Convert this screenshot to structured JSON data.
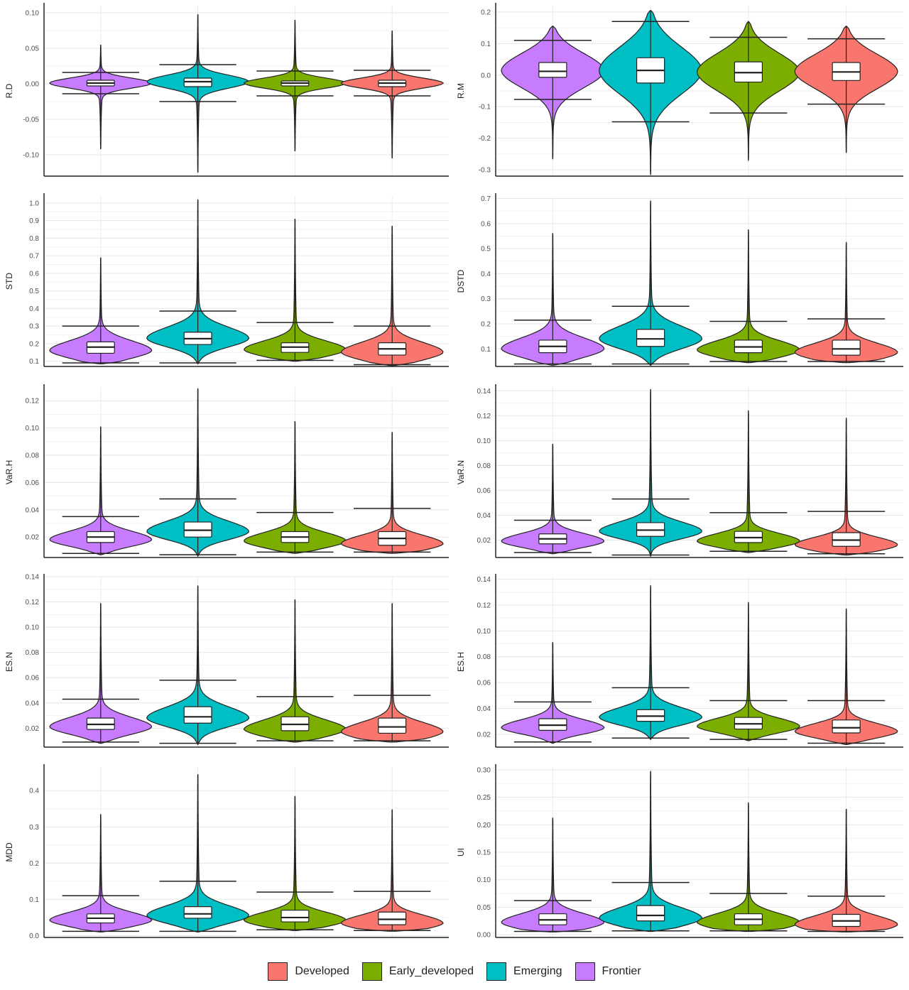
{
  "group_order": [
    "Frontier",
    "Emerging",
    "Early_developed",
    "Developed"
  ],
  "colors": {
    "Developed": "#F8766D",
    "Early_developed": "#7CAE00",
    "Emerging": "#00BFC4",
    "Frontier": "#C77CFF"
  },
  "legend": [
    {
      "label": "Developed",
      "color": "#F8766D"
    },
    {
      "label": "Early_developed",
      "color": "#7CAE00"
    },
    {
      "label": "Emerging",
      "color": "#00BFC4"
    },
    {
      "label": "Frontier",
      "color": "#C77CFF"
    }
  ],
  "chart_data": [
    {
      "type": "violin",
      "ylabel": "R.D",
      "ylim": [
        -0.13,
        0.11
      ],
      "ticks": [
        -0.1,
        -0.05,
        0.0,
        0.05,
        0.1
      ],
      "tick_labels": [
        "-0.10",
        "-0.05",
        "0.00",
        "0.05",
        "0.10"
      ],
      "series": [
        {
          "name": "Frontier",
          "q1": -0.003,
          "median": 0.001,
          "q3": 0.005,
          "whisker_low": -0.014,
          "whisker_high": 0.016,
          "min": -0.092,
          "max": 0.055,
          "mode": 0.001,
          "spread": 0.007,
          "skew": 0
        },
        {
          "name": "Emerging",
          "q1": -0.004,
          "median": 0.003,
          "q3": 0.008,
          "whisker_low": -0.025,
          "whisker_high": 0.027,
          "min": -0.125,
          "max": 0.098,
          "mode": 0.003,
          "spread": 0.009,
          "skew": 0
        },
        {
          "name": "Early_developed",
          "q1": -0.003,
          "median": 0.001,
          "q3": 0.004,
          "whisker_low": -0.017,
          "whisker_high": 0.018,
          "min": -0.095,
          "max": 0.09,
          "mode": 0.001,
          "spread": 0.007,
          "skew": 0
        },
        {
          "name": "Developed",
          "q1": -0.004,
          "median": 0.001,
          "q3": 0.005,
          "whisker_low": -0.017,
          "whisker_high": 0.019,
          "min": -0.105,
          "max": 0.075,
          "mode": 0.001,
          "spread": 0.007,
          "skew": 0
        }
      ]
    },
    {
      "type": "violin",
      "ylabel": "R.M",
      "ylim": [
        -0.32,
        0.22
      ],
      "ticks": [
        -0.3,
        -0.2,
        -0.1,
        0.0,
        0.1,
        0.2
      ],
      "tick_labels": [
        "-0.3",
        "-0.2",
        "-0.1",
        "0.0",
        "0.1",
        "0.2"
      ],
      "series": [
        {
          "name": "Frontier",
          "q1": -0.007,
          "median": 0.012,
          "q3": 0.04,
          "whisker_low": -0.077,
          "whisker_high": 0.11,
          "min": -0.265,
          "max": 0.155,
          "mode": 0.015,
          "spread": 0.055,
          "skew": 0
        },
        {
          "name": "Emerging",
          "q1": -0.025,
          "median": 0.015,
          "q3": 0.055,
          "whisker_low": -0.148,
          "whisker_high": 0.17,
          "min": -0.315,
          "max": 0.205,
          "mode": 0.015,
          "spread": 0.075,
          "skew": 0
        },
        {
          "name": "Early_developed",
          "q1": -0.022,
          "median": 0.008,
          "q3": 0.042,
          "whisker_low": -0.12,
          "whisker_high": 0.12,
          "min": -0.27,
          "max": 0.17,
          "mode": 0.01,
          "spread": 0.06,
          "skew": 0
        },
        {
          "name": "Developed",
          "q1": -0.017,
          "median": 0.01,
          "q3": 0.04,
          "whisker_low": -0.092,
          "whisker_high": 0.115,
          "min": -0.245,
          "max": 0.155,
          "mode": 0.012,
          "spread": 0.055,
          "skew": 0
        }
      ]
    },
    {
      "type": "violin",
      "ylabel": "STD",
      "ylim": [
        0.07,
        1.04
      ],
      "ticks": [
        0.1,
        0.2,
        0.3,
        0.4,
        0.5,
        0.6,
        0.7,
        0.8,
        0.9,
        1.0
      ],
      "tick_labels": [
        "0.1",
        "0.2",
        "0.3",
        "0.4",
        "0.5",
        "0.6",
        "0.7",
        "0.8",
        "0.9",
        "1.0"
      ],
      "series": [
        {
          "name": "Frontier",
          "q1": 0.145,
          "median": 0.18,
          "q3": 0.21,
          "whisker_low": 0.09,
          "whisker_high": 0.3,
          "min": 0.085,
          "max": 0.69,
          "mode": 0.16,
          "spread": 0.045,
          "skew": 1
        },
        {
          "name": "Emerging",
          "q1": 0.195,
          "median": 0.228,
          "q3": 0.265,
          "whisker_low": 0.09,
          "whisker_high": 0.385,
          "min": 0.085,
          "max": 1.02,
          "mode": 0.23,
          "spread": 0.05,
          "skew": 1
        },
        {
          "name": "Early_developed",
          "q1": 0.15,
          "median": 0.18,
          "q3": 0.205,
          "whisker_low": 0.105,
          "whisker_high": 0.32,
          "min": 0.1,
          "max": 0.91,
          "mode": 0.165,
          "spread": 0.04,
          "skew": 1
        },
        {
          "name": "Developed",
          "q1": 0.135,
          "median": 0.17,
          "q3": 0.205,
          "whisker_low": 0.08,
          "whisker_high": 0.3,
          "min": 0.075,
          "max": 0.87,
          "mode": 0.15,
          "spread": 0.045,
          "skew": 1
        }
      ]
    },
    {
      "type": "violin",
      "ylabel": "DSTD",
      "ylim": [
        0.03,
        0.71
      ],
      "ticks": [
        0.1,
        0.2,
        0.3,
        0.4,
        0.5,
        0.6,
        0.7
      ],
      "tick_labels": [
        "0.1",
        "0.2",
        "0.3",
        "0.4",
        "0.5",
        "0.6",
        "0.7"
      ],
      "series": [
        {
          "name": "Frontier",
          "q1": 0.085,
          "median": 0.11,
          "q3": 0.135,
          "whisker_low": 0.04,
          "whisker_high": 0.215,
          "min": 0.035,
          "max": 0.56,
          "mode": 0.1,
          "spread": 0.035,
          "skew": 1
        },
        {
          "name": "Emerging",
          "q1": 0.11,
          "median": 0.14,
          "q3": 0.178,
          "whisker_low": 0.04,
          "whisker_high": 0.27,
          "min": 0.035,
          "max": 0.69,
          "mode": 0.14,
          "spread": 0.04,
          "skew": 1
        },
        {
          "name": "Early_developed",
          "q1": 0.085,
          "median": 0.108,
          "q3": 0.135,
          "whisker_low": 0.05,
          "whisker_high": 0.21,
          "min": 0.045,
          "max": 0.575,
          "mode": 0.095,
          "spread": 0.03,
          "skew": 1
        },
        {
          "name": "Developed",
          "q1": 0.075,
          "median": 0.1,
          "q3": 0.135,
          "whisker_low": 0.05,
          "whisker_high": 0.22,
          "min": 0.045,
          "max": 0.525,
          "mode": 0.085,
          "spread": 0.03,
          "skew": 1
        }
      ]
    },
    {
      "type": "violin",
      "ylabel": "VaR.H",
      "ylim": [
        0.005,
        0.13
      ],
      "ticks": [
        0.02,
        0.04,
        0.06,
        0.08,
        0.1,
        0.12
      ],
      "tick_labels": [
        "0.02",
        "0.04",
        "0.06",
        "0.08",
        "0.10",
        "0.12"
      ],
      "series": [
        {
          "name": "Frontier",
          "q1": 0.016,
          "median": 0.02,
          "q3": 0.024,
          "whisker_low": 0.008,
          "whisker_high": 0.035,
          "min": 0.007,
          "max": 0.101,
          "mode": 0.018,
          "spread": 0.005,
          "skew": 1
        },
        {
          "name": "Emerging",
          "q1": 0.02,
          "median": 0.025,
          "q3": 0.031,
          "whisker_low": 0.007,
          "whisker_high": 0.048,
          "min": 0.006,
          "max": 0.129,
          "mode": 0.024,
          "spread": 0.006,
          "skew": 1
        },
        {
          "name": "Early_developed",
          "q1": 0.016,
          "median": 0.02,
          "q3": 0.024,
          "whisker_low": 0.009,
          "whisker_high": 0.038,
          "min": 0.008,
          "max": 0.105,
          "mode": 0.017,
          "spread": 0.005,
          "skew": 1
        },
        {
          "name": "Developed",
          "q1": 0.014,
          "median": 0.019,
          "q3": 0.024,
          "whisker_low": 0.009,
          "whisker_high": 0.041,
          "min": 0.008,
          "max": 0.097,
          "mode": 0.015,
          "spread": 0.005,
          "skew": 1
        }
      ]
    },
    {
      "type": "violin",
      "ylabel": "VaR.N",
      "ylim": [
        0.006,
        0.143
      ],
      "ticks": [
        0.02,
        0.04,
        0.06,
        0.08,
        0.1,
        0.12,
        0.14
      ],
      "tick_labels": [
        "0.02",
        "0.04",
        "0.06",
        "0.08",
        "0.10",
        "0.12",
        "0.14"
      ],
      "series": [
        {
          "name": "Frontier",
          "q1": 0.017,
          "median": 0.021,
          "q3": 0.025,
          "whisker_low": 0.01,
          "whisker_high": 0.036,
          "min": 0.009,
          "max": 0.097,
          "mode": 0.019,
          "spread": 0.005,
          "skew": 1
        },
        {
          "name": "Emerging",
          "q1": 0.023,
          "median": 0.028,
          "q3": 0.034,
          "whisker_low": 0.008,
          "whisker_high": 0.053,
          "min": 0.007,
          "max": 0.141,
          "mode": 0.027,
          "spread": 0.006,
          "skew": 1
        },
        {
          "name": "Early_developed",
          "q1": 0.018,
          "median": 0.022,
          "q3": 0.027,
          "whisker_low": 0.011,
          "whisker_high": 0.042,
          "min": 0.01,
          "max": 0.124,
          "mode": 0.019,
          "spread": 0.005,
          "skew": 1
        },
        {
          "name": "Developed",
          "q1": 0.015,
          "median": 0.02,
          "q3": 0.026,
          "whisker_low": 0.009,
          "whisker_high": 0.043,
          "min": 0.008,
          "max": 0.118,
          "mode": 0.016,
          "spread": 0.005,
          "skew": 1
        }
      ]
    },
    {
      "type": "violin",
      "ylabel": "ES.N",
      "ylim": [
        0.005,
        0.14
      ],
      "ticks": [
        0.02,
        0.04,
        0.06,
        0.08,
        0.1,
        0.12,
        0.14
      ],
      "tick_labels": [
        "0.02",
        "0.04",
        "0.06",
        "0.08",
        "0.10",
        "0.12",
        "0.14"
      ],
      "series": [
        {
          "name": "Frontier",
          "q1": 0.019,
          "median": 0.023,
          "q3": 0.028,
          "whisker_low": 0.009,
          "whisker_high": 0.043,
          "min": 0.008,
          "max": 0.119,
          "mode": 0.021,
          "spread": 0.006,
          "skew": 1
        },
        {
          "name": "Emerging",
          "q1": 0.024,
          "median": 0.029,
          "q3": 0.037,
          "whisker_low": 0.008,
          "whisker_high": 0.058,
          "min": 0.007,
          "max": 0.133,
          "mode": 0.028,
          "spread": 0.007,
          "skew": 1
        },
        {
          "name": "Early_developed",
          "q1": 0.018,
          "median": 0.023,
          "q3": 0.029,
          "whisker_low": 0.01,
          "whisker_high": 0.045,
          "min": 0.009,
          "max": 0.122,
          "mode": 0.019,
          "spread": 0.006,
          "skew": 1
        },
        {
          "name": "Developed",
          "q1": 0.016,
          "median": 0.021,
          "q3": 0.028,
          "whisker_low": 0.01,
          "whisker_high": 0.046,
          "min": 0.009,
          "max": 0.119,
          "mode": 0.017,
          "spread": 0.006,
          "skew": 1
        }
      ]
    },
    {
      "type": "violin",
      "ylabel": "ES.H",
      "ylim": [
        0.01,
        0.142
      ],
      "ticks": [
        0.02,
        0.04,
        0.06,
        0.08,
        0.1,
        0.12,
        0.14
      ],
      "tick_labels": [
        "0.02",
        "0.04",
        "0.06",
        "0.08",
        "0.10",
        "0.12",
        "0.14"
      ],
      "series": [
        {
          "name": "Frontier",
          "q1": 0.023,
          "median": 0.027,
          "q3": 0.032,
          "whisker_low": 0.014,
          "whisker_high": 0.045,
          "min": 0.013,
          "max": 0.091,
          "mode": 0.025,
          "spread": 0.005,
          "skew": 1
        },
        {
          "name": "Emerging",
          "q1": 0.03,
          "median": 0.034,
          "q3": 0.039,
          "whisker_low": 0.017,
          "whisker_high": 0.056,
          "min": 0.016,
          "max": 0.135,
          "mode": 0.033,
          "spread": 0.006,
          "skew": 1
        },
        {
          "name": "Early_developed",
          "q1": 0.024,
          "median": 0.028,
          "q3": 0.033,
          "whisker_low": 0.016,
          "whisker_high": 0.046,
          "min": 0.015,
          "max": 0.122,
          "mode": 0.026,
          "spread": 0.005,
          "skew": 1
        },
        {
          "name": "Developed",
          "q1": 0.021,
          "median": 0.025,
          "q3": 0.031,
          "whisker_low": 0.013,
          "whisker_high": 0.046,
          "min": 0.012,
          "max": 0.117,
          "mode": 0.022,
          "spread": 0.005,
          "skew": 1
        }
      ]
    },
    {
      "type": "violin",
      "ylabel": "MDD",
      "ylim": [
        -0.005,
        0.465
      ],
      "ticks": [
        0.0,
        0.1,
        0.2,
        0.3,
        0.4
      ],
      "tick_labels": [
        "0.0",
        "0.1",
        "0.2",
        "0.3",
        "0.4"
      ],
      "series": [
        {
          "name": "Frontier",
          "q1": 0.035,
          "median": 0.048,
          "q3": 0.06,
          "whisker_low": 0.012,
          "whisker_high": 0.11,
          "min": 0.01,
          "max": 0.335,
          "mode": 0.042,
          "spread": 0.018,
          "skew": 1
        },
        {
          "name": "Emerging",
          "q1": 0.048,
          "median": 0.06,
          "q3": 0.08,
          "whisker_low": 0.012,
          "whisker_high": 0.15,
          "min": 0.01,
          "max": 0.445,
          "mode": 0.055,
          "spread": 0.022,
          "skew": 1
        },
        {
          "name": "Early_developed",
          "q1": 0.038,
          "median": 0.05,
          "q3": 0.07,
          "whisker_low": 0.016,
          "whisker_high": 0.12,
          "min": 0.014,
          "max": 0.385,
          "mode": 0.042,
          "spread": 0.018,
          "skew": 1
        },
        {
          "name": "Developed",
          "q1": 0.03,
          "median": 0.045,
          "q3": 0.065,
          "whisker_low": 0.014,
          "whisker_high": 0.122,
          "min": 0.012,
          "max": 0.348,
          "mode": 0.034,
          "spread": 0.018,
          "skew": 1
        }
      ]
    },
    {
      "type": "violin",
      "ylabel": "UI",
      "ylim": [
        -0.005,
        0.305
      ],
      "ticks": [
        0.0,
        0.05,
        0.1,
        0.15,
        0.2,
        0.25,
        0.3
      ],
      "tick_labels": [
        "0.00",
        "0.05",
        "0.10",
        "0.15",
        "0.20",
        "0.25",
        "0.30"
      ],
      "series": [
        {
          "name": "Frontier",
          "q1": 0.018,
          "median": 0.027,
          "q3": 0.038,
          "whisker_low": 0.006,
          "whisker_high": 0.062,
          "min": 0.005,
          "max": 0.212,
          "mode": 0.022,
          "spread": 0.013,
          "skew": 1
        },
        {
          "name": "Emerging",
          "q1": 0.025,
          "median": 0.035,
          "q3": 0.053,
          "whisker_low": 0.007,
          "whisker_high": 0.095,
          "min": 0.006,
          "max": 0.297,
          "mode": 0.03,
          "spread": 0.015,
          "skew": 1
        },
        {
          "name": "Early_developed",
          "q1": 0.018,
          "median": 0.028,
          "q3": 0.038,
          "whisker_low": 0.007,
          "whisker_high": 0.075,
          "min": 0.006,
          "max": 0.24,
          "mode": 0.022,
          "spread": 0.013,
          "skew": 1
        },
        {
          "name": "Developed",
          "q1": 0.015,
          "median": 0.025,
          "q3": 0.037,
          "whisker_low": 0.006,
          "whisker_high": 0.07,
          "min": 0.005,
          "max": 0.228,
          "mode": 0.018,
          "spread": 0.013,
          "skew": 1
        }
      ]
    }
  ]
}
